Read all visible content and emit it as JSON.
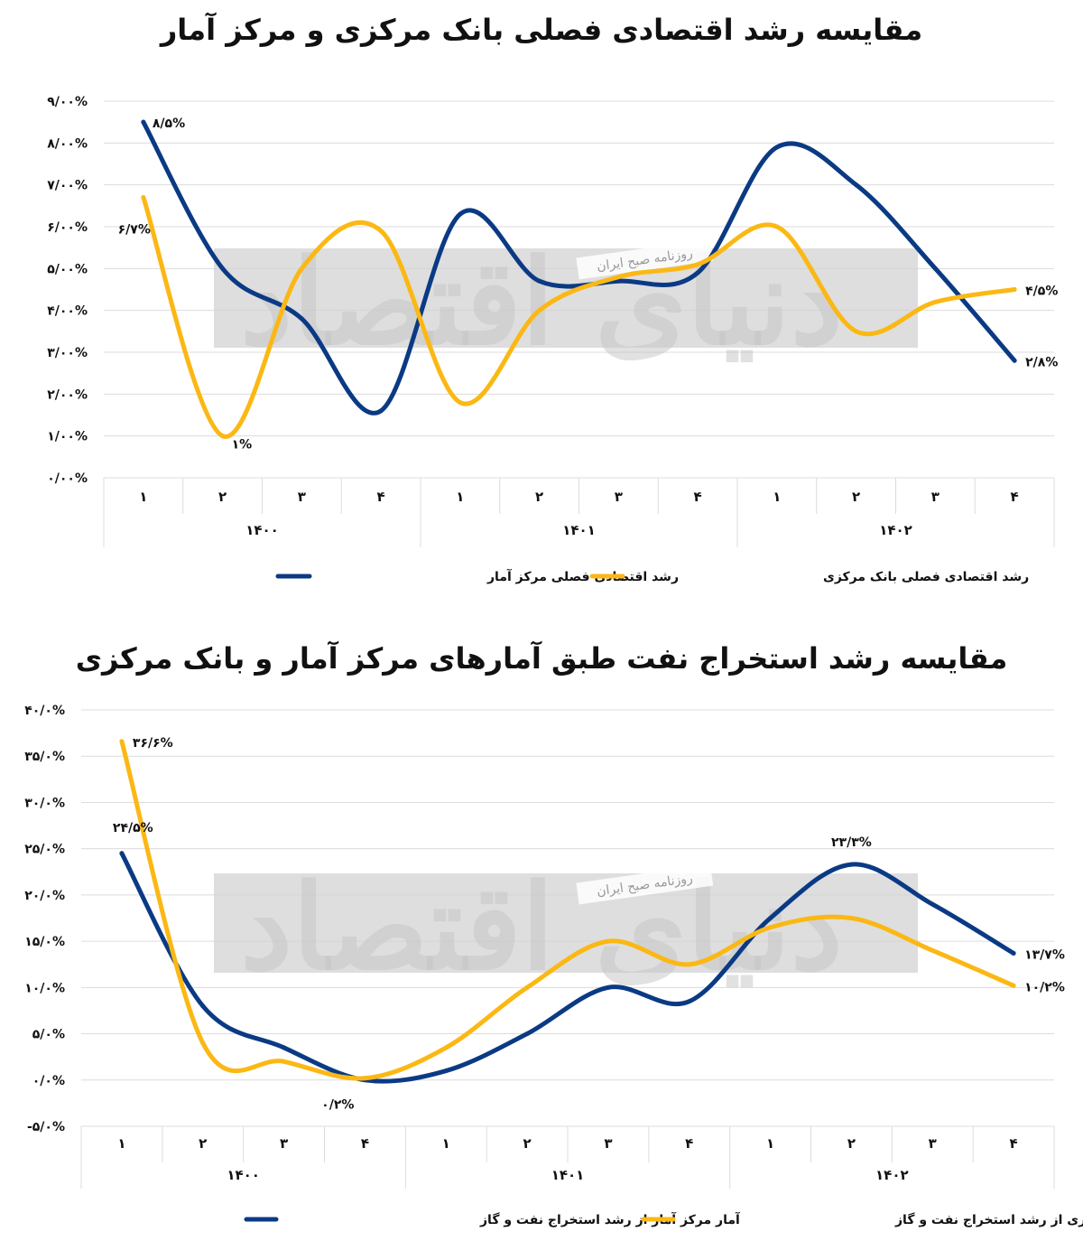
{
  "colors": {
    "series_blue": "#0b3a84",
    "series_yellow": "#fbb814",
    "grid": "#dcdcdc",
    "watermark_band": "#d3d3d3"
  },
  "watermark": {
    "big_text": "دنیای اقتصاد",
    "small_text": "روزنامه صبح ایران"
  },
  "chart_data": [
    {
      "type": "line",
      "title": "مقایسه رشد اقتصادی فصلی بانک مرکزی و مرکز آمار",
      "categories": [
        "۱",
        "۲",
        "۳",
        "۴",
        "۱",
        "۲",
        "۳",
        "۴",
        "۱",
        "۲",
        "۳",
        "۴"
      ],
      "groups": [
        "۱۴۰۰",
        "۱۴۰۱",
        "۱۴۰۲"
      ],
      "y_ticks": [
        "۰/۰۰%",
        "۱/۰۰%",
        "۲/۰۰%",
        "۳/۰۰%",
        "۴/۰۰%",
        "۵/۰۰%",
        "۶/۰۰%",
        "۷/۰۰%",
        "۸/۰۰%",
        "۹/۰۰%"
      ],
      "ylim": [
        0,
        9
      ],
      "grid": true,
      "legend_position": "bottom",
      "series": [
        {
          "name": "رشد اقتصادی فصلی مرکز آمار",
          "color": "#0b3a84",
          "values": [
            8.5,
            5.0,
            3.8,
            1.6,
            6.3,
            4.7,
            4.7,
            4.9,
            7.9,
            7.0,
            5.0,
            2.8
          ],
          "labels": [
            "۸/۵%",
            "",
            "",
            "",
            "",
            "",
            "",
            "",
            "",
            "",
            "",
            "۲/۸%"
          ]
        },
        {
          "name": "رشد اقتصادی فصلی بانک مرکزی",
          "color": "#fbb814",
          "values": [
            6.7,
            1.0,
            5.0,
            5.9,
            1.8,
            4.0,
            4.8,
            5.1,
            6.0,
            3.5,
            4.2,
            4.5
          ],
          "labels": [
            "۶/۷%",
            "۱%",
            "",
            "",
            "",
            "",
            "",
            "",
            "",
            "",
            "",
            "۴/۵%"
          ]
        }
      ]
    },
    {
      "type": "line",
      "title": "مقایسه رشد استخراج نفت طبق آمارهای مرکز آمار و بانک مرکزی",
      "categories": [
        "۱",
        "۲",
        "۳",
        "۴",
        "۱",
        "۲",
        "۳",
        "۴",
        "۱",
        "۲",
        "۳",
        "۴"
      ],
      "groups": [
        "۱۴۰۰",
        "۱۴۰۱",
        "۱۴۰۲"
      ],
      "y_ticks": [
        "-۵/۰%",
        "۰/۰%",
        "۵/۰%",
        "۱۰/۰%",
        "۱۵/۰%",
        "۲۰/۰%",
        "۲۵/۰%",
        "۳۰/۰%",
        "۳۵/۰%",
        "۴۰/۰%"
      ],
      "ylim": [
        -5,
        40
      ],
      "grid": true,
      "legend_position": "bottom",
      "series": [
        {
          "name": "آمار مرکز آمار از رشد استخراج نفت و گاز",
          "color": "#0b3a84",
          "values": [
            24.5,
            8.0,
            3.5,
            0.0,
            1.0,
            5.0,
            10.0,
            8.5,
            17.5,
            23.3,
            19.0,
            13.7
          ],
          "labels": [
            "۲۴/۵%",
            "",
            "",
            "",
            "",
            "",
            "",
            "",
            "",
            "۲۳/۳%",
            "",
            "۱۳/۷%"
          ]
        },
        {
          "name": "آمار بانک مرکزی از رشد استخراج نفت و گاز",
          "color": "#fbb814",
          "values": [
            36.6,
            4.0,
            2.0,
            0.2,
            3.5,
            10.0,
            15.0,
            12.5,
            16.5,
            17.5,
            14.0,
            10.2
          ],
          "labels": [
            "۳۶/۶%",
            "",
            "",
            "۰/۲%",
            "",
            "",
            "",
            "",
            "",
            "",
            "",
            "۱۰/۲%"
          ]
        }
      ]
    }
  ]
}
